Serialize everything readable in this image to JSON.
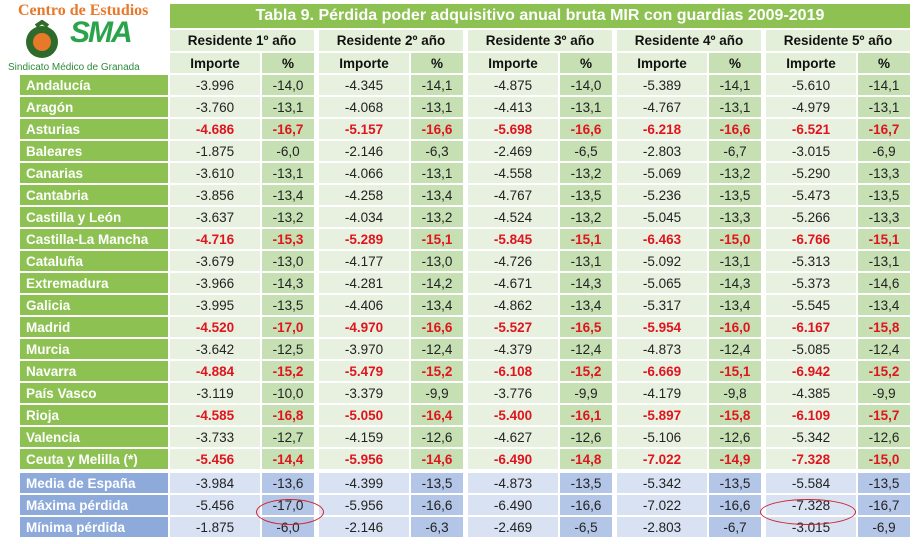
{
  "logo": {
    "top": "Centro de Estudios",
    "mark": "SMA",
    "bottom": "Sindicato Médico de Granada"
  },
  "title": "Tabla 9. Pérdida poder adquisitivo anual bruta MIR con guardias 2009-2019",
  "groups": [
    "Residente 1º año",
    "Residente 2º año",
    "Residente 3º año",
    "Residente 4º año",
    "Residente 5º año"
  ],
  "subheaders": {
    "importe": "Importe",
    "pct": "%"
  },
  "rows": [
    {
      "name": "Andalucía",
      "v": [
        "-3.996",
        "-14,0",
        "-4.345",
        "-14,1",
        "-4.875",
        "-14,0",
        "-5.389",
        "-14,1",
        "-5.610",
        "-14,1"
      ],
      "highlight": false
    },
    {
      "name": "Aragón",
      "v": [
        "-3.760",
        "-13,1",
        "-4.068",
        "-13,1",
        "-4.413",
        "-13,1",
        "-4.767",
        "-13,1",
        "-4.979",
        "-13,1"
      ],
      "highlight": false
    },
    {
      "name": "Asturias",
      "v": [
        "-4.686",
        "-16,7",
        "-5.157",
        "-16,6",
        "-5.698",
        "-16,6",
        "-6.218",
        "-16,6",
        "-6.521",
        "-16,7"
      ],
      "highlight": true
    },
    {
      "name": "Baleares",
      "v": [
        "-1.875",
        "-6,0",
        "-2.146",
        "-6,3",
        "-2.469",
        "-6,5",
        "-2.803",
        "-6,7",
        "-3.015",
        "-6,9"
      ],
      "highlight": false
    },
    {
      "name": "Canarias",
      "v": [
        "-3.610",
        "-13,1",
        "-4.066",
        "-13,1",
        "-4.558",
        "-13,2",
        "-5.069",
        "-13,2",
        "-5.290",
        "-13,3"
      ],
      "highlight": false
    },
    {
      "name": "Cantabria",
      "v": [
        "-3.856",
        "-13,4",
        "-4.258",
        "-13,4",
        "-4.767",
        "-13,5",
        "-5.236",
        "-13,5",
        "-5.473",
        "-13,5"
      ],
      "highlight": false
    },
    {
      "name": "Castilla y León",
      "v": [
        "-3.637",
        "-13,2",
        "-4.034",
        "-13,2",
        "-4.524",
        "-13,2",
        "-5.045",
        "-13,3",
        "-5.266",
        "-13,3"
      ],
      "highlight": false
    },
    {
      "name": "Castilla-La Mancha",
      "v": [
        "-4.716",
        "-15,3",
        "-5.289",
        "-15,1",
        "-5.845",
        "-15,1",
        "-6.463",
        "-15,0",
        "-6.766",
        "-15,1"
      ],
      "highlight": true
    },
    {
      "name": "Cataluña",
      "v": [
        "-3.679",
        "-13,0",
        "-4.177",
        "-13,0",
        "-4.726",
        "-13,1",
        "-5.092",
        "-13,1",
        "-5.313",
        "-13,1"
      ],
      "highlight": false
    },
    {
      "name": "Extremadura",
      "v": [
        "-3.966",
        "-14,3",
        "-4.281",
        "-14,2",
        "-4.671",
        "-14,3",
        "-5.065",
        "-14,3",
        "-5.373",
        "-14,6"
      ],
      "highlight": false
    },
    {
      "name": "Galicia",
      "v": [
        "-3.995",
        "-13,5",
        "-4.406",
        "-13,4",
        "-4.862",
        "-13,4",
        "-5.317",
        "-13,4",
        "-5.545",
        "-13,4"
      ],
      "highlight": false
    },
    {
      "name": "Madrid",
      "v": [
        "-4.520",
        "-17,0",
        "-4.970",
        "-16,6",
        "-5.527",
        "-16,5",
        "-5.954",
        "-16,0",
        "-6.167",
        "-15,8"
      ],
      "highlight": true
    },
    {
      "name": "Murcia",
      "v": [
        "-3.642",
        "-12,5",
        "-3.970",
        "-12,4",
        "-4.379",
        "-12,4",
        "-4.873",
        "-12,4",
        "-5.085",
        "-12,4"
      ],
      "highlight": false
    },
    {
      "name": "Navarra",
      "v": [
        "-4.884",
        "-15,2",
        "-5.479",
        "-15,2",
        "-6.108",
        "-15,2",
        "-6.669",
        "-15,1",
        "-6.942",
        "-15,2"
      ],
      "highlight": true
    },
    {
      "name": "País Vasco",
      "v": [
        "-3.119",
        "-10,0",
        "-3.379",
        "-9,9",
        "-3.776",
        "-9,9",
        "-4.179",
        "-9,8",
        "-4.385",
        "-9,9"
      ],
      "highlight": false
    },
    {
      "name": "Rioja",
      "v": [
        "-4.585",
        "-16,8",
        "-5.050",
        "-16,4",
        "-5.400",
        "-16,1",
        "-5.897",
        "-15,8",
        "-6.109",
        "-15,7"
      ],
      "highlight": true
    },
    {
      "name": "Valencia",
      "v": [
        "-3.733",
        "-12,7",
        "-4.159",
        "-12,6",
        "-4.627",
        "-12,6",
        "-5.106",
        "-12,6",
        "-5.342",
        "-12,6"
      ],
      "highlight": false
    },
    {
      "name": "Ceuta y Melilla (*)",
      "v": [
        "-5.456",
        "-14,4",
        "-5.956",
        "-14,6",
        "-6.490",
        "-14,8",
        "-7.022",
        "-14,9",
        "-7.328",
        "-15,0"
      ],
      "highlight": true
    }
  ],
  "summary": [
    {
      "name": "Media de España",
      "v": [
        "-3.984",
        "-13,6",
        "-4.399",
        "-13,5",
        "-4.873",
        "-13,5",
        "-5.342",
        "-13,5",
        "-5.584",
        "-13,5"
      ]
    },
    {
      "name": "Máxima pérdida",
      "v": [
        "-5.456",
        "-17,0",
        "-5.956",
        "-16,6",
        "-6.490",
        "-16,6",
        "-7.022",
        "-16,6",
        "-7.328",
        "-16,7"
      ]
    },
    {
      "name": "Mínima pérdida",
      "v": [
        "-1.875",
        "-6,0",
        "-2.146",
        "-6,3",
        "-2.469",
        "-6,5",
        "-2.803",
        "-6,7",
        "-3.015",
        "-6,9"
      ]
    }
  ],
  "colors": {
    "label_green": "#8dc152",
    "label_blue": "#8eaadb",
    "highlight_red": "#e0141e",
    "circle": "#d0202a"
  }
}
